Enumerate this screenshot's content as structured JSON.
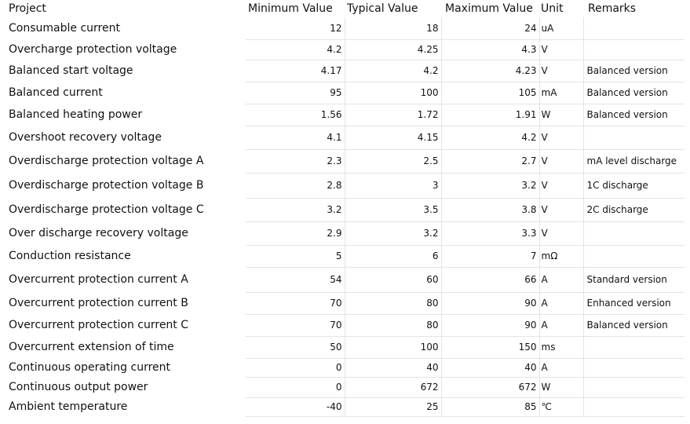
{
  "table": {
    "headers": [
      "Project",
      "Minimum Value",
      "Typical Value",
      "Maximum Value",
      "Unit",
      "Remarks"
    ],
    "rows": [
      {
        "project": "Consumable current",
        "min": "12",
        "typ": "18",
        "max": "24",
        "unit": "uA",
        "remarks": ""
      },
      {
        "project": "Overcharge protection voltage",
        "min": "4.2",
        "typ": "4.25",
        "max": "4.3",
        "unit": "V",
        "remarks": ""
      },
      {
        "project": "Balanced start voltage",
        "min": "4.17",
        "typ": "4.2",
        "max": "4.23",
        "unit": "V",
        "remarks": "Balanced version"
      },
      {
        "project": "Balanced current",
        "min": "95",
        "typ": "100",
        "max": "105",
        "unit": "mA",
        "remarks": "Balanced version"
      },
      {
        "project": "Balanced heating power",
        "min": "1.56",
        "typ": "1.72",
        "max": "1.91",
        "unit": "W",
        "remarks": "Balanced version"
      },
      {
        "project": "Overshoot recovery voltage",
        "min": "4.1",
        "typ": "4.15",
        "max": "4.2",
        "unit": "V",
        "remarks": ""
      },
      {
        "project": "Overdischarge protection voltage A",
        "min": "2.3",
        "typ": "2.5",
        "max": "2.7",
        "unit": "V",
        "remarks": "mA level discharge"
      },
      {
        "project": "Overdischarge protection voltage B",
        "min": "2.8",
        "typ": "3",
        "max": "3.2",
        "unit": "V",
        "remarks": "1C discharge"
      },
      {
        "project": "Overdischarge protection voltage C",
        "min": "3.2",
        "typ": "3.5",
        "max": "3.8",
        "unit": "V",
        "remarks": "2C discharge"
      },
      {
        "project": "Over discharge recovery voltage",
        "min": "2.9",
        "typ": "3.2",
        "max": "3.3",
        "unit": "V",
        "remarks": ""
      },
      {
        "project": "Conduction resistance",
        "min": "5",
        "typ": "6",
        "max": "7",
        "unit": "mΩ",
        "remarks": ""
      },
      {
        "project": "Overcurrent protection current A",
        "min": "54",
        "typ": "60",
        "max": "66",
        "unit": "A",
        "remarks": "Standard version"
      },
      {
        "project": "Overcurrent protection current B",
        "min": "70",
        "typ": "80",
        "max": "90",
        "unit": "A",
        "remarks": "Enhanced version"
      },
      {
        "project": "Overcurrent protection current C",
        "min": "70",
        "typ": "80",
        "max": "90",
        "unit": "A",
        "remarks": "Balanced version"
      },
      {
        "project": "Overcurrent extension of time",
        "min": "50",
        "typ": "100",
        "max": "150",
        "unit": "ms",
        "remarks": ""
      },
      {
        "project": "Continuous operating current",
        "min": "0",
        "typ": "40",
        "max": "40",
        "unit": "A",
        "remarks": ""
      },
      {
        "project": "Continuous output power",
        "min": "0",
        "typ": "672",
        "max": "672",
        "unit": "W",
        "remarks": ""
      },
      {
        "project": "Ambient temperature",
        "min": "-40",
        "typ": "25",
        "max": "85",
        "unit": "℃",
        "remarks": ""
      }
    ]
  }
}
